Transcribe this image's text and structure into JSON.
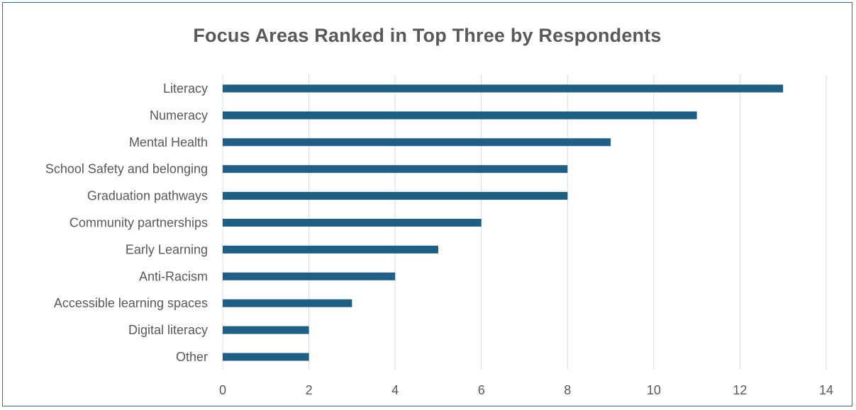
{
  "chart_data": {
    "type": "bar",
    "orientation": "horizontal",
    "title": "Focus Areas Ranked in Top Three by Respondents",
    "xlabel": "",
    "ylabel": "",
    "categories": [
      "Literacy",
      "Numeracy",
      "Mental Health",
      "School Safety and belonging",
      "Graduation pathways",
      "Community partnerships",
      "Early Learning",
      "Anti-Racism",
      "Accessible learning spaces",
      "Digital literacy",
      "Other"
    ],
    "values": [
      13,
      11,
      9,
      8,
      8,
      6,
      5,
      4,
      3,
      2,
      2
    ],
    "xlim": [
      0,
      14
    ],
    "xticks": [
      0,
      2,
      4,
      6,
      8,
      10,
      12,
      14
    ],
    "grid": "vertical",
    "legend": "none",
    "bar_color": "#1f5f86",
    "grid_color": "#d9d9d9",
    "text_color": "#595959"
  }
}
